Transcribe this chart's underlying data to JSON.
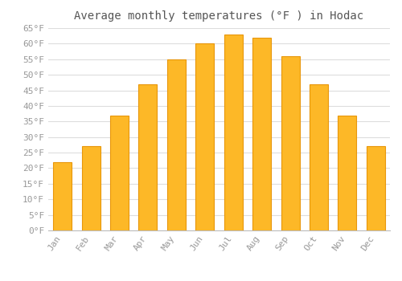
{
  "title": "Average monthly temperatures (°F ) in Hodac",
  "months": [
    "Jan",
    "Feb",
    "Mar",
    "Apr",
    "May",
    "Jun",
    "Jul",
    "Aug",
    "Sep",
    "Oct",
    "Nov",
    "Dec"
  ],
  "values": [
    22,
    27,
    37,
    47,
    55,
    60,
    63,
    62,
    56,
    47,
    37,
    27
  ],
  "bar_color": "#FDB827",
  "bar_edge_color": "#E8960A",
  "background_color": "#FFFFFF",
  "grid_color": "#DDDDDD",
  "ylim": [
    0,
    65
  ],
  "yticks": [
    0,
    5,
    10,
    15,
    20,
    25,
    30,
    35,
    40,
    45,
    50,
    55,
    60,
    65
  ],
  "title_fontsize": 10,
  "tick_fontsize": 8,
  "tick_color": "#999999",
  "title_color": "#555555",
  "font_family": "monospace",
  "bar_width": 0.65
}
